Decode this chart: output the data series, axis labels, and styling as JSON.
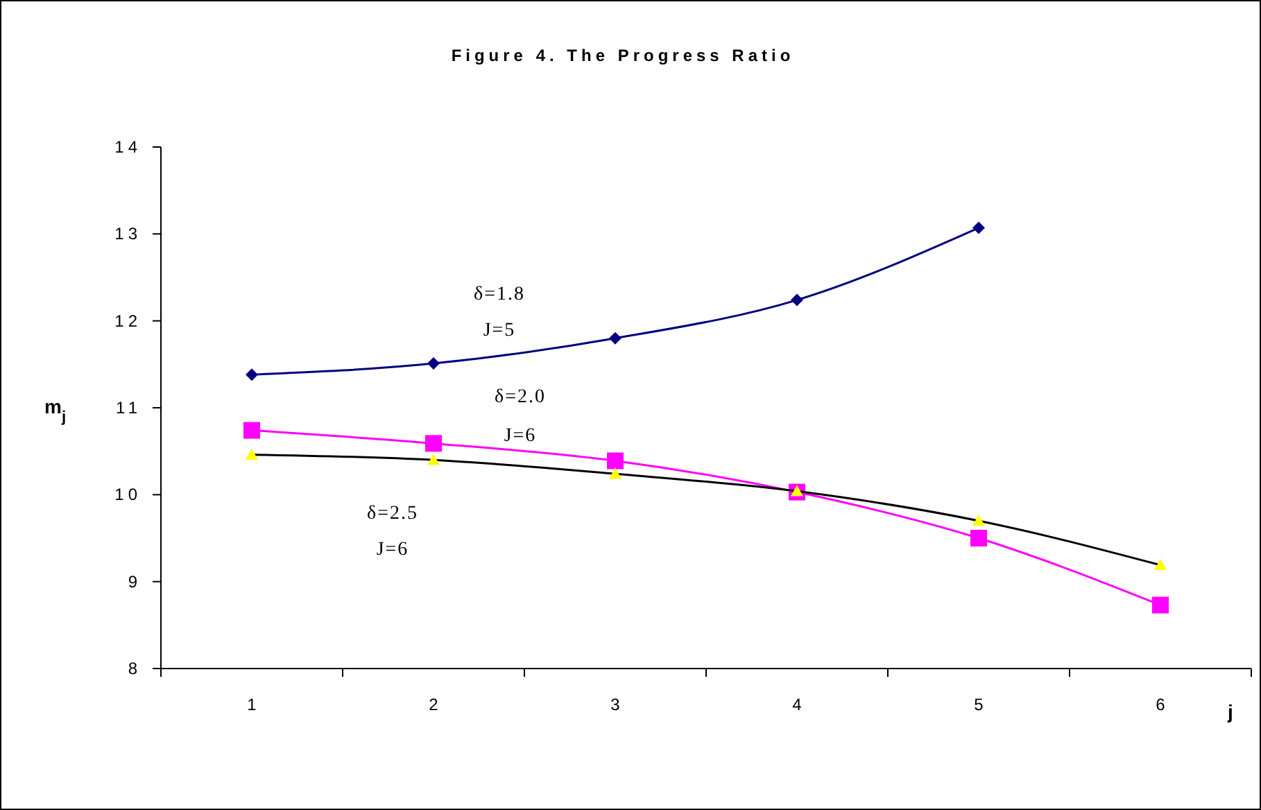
{
  "chart_data": {
    "type": "line",
    "title": "Figure 4. The Progress Ratio",
    "xlabel": "j",
    "ylabel": "m$_{j}$",
    "categories": [
      "1",
      "2",
      "3",
      "4",
      "5",
      "6"
    ],
    "ylim": [
      8,
      14
    ],
    "yticks": [
      8,
      9,
      10,
      11,
      12,
      13,
      14
    ],
    "grid": false,
    "series": [
      {
        "color": "#000080",
        "marker": "diamond",
        "values": [
          11.38,
          11.51,
          11.8,
          12.24,
          13.07,
          null
        ]
      },
      {
        "color": "#ff00ff",
        "marker": "square",
        "values": [
          10.74,
          10.59,
          10.39,
          10.03,
          9.5,
          8.73
        ]
      },
      {
        "color": "#000000",
        "marker": "triangle",
        "values": [
          10.46,
          10.4,
          10.24,
          10.04,
          9.7,
          9.19
        ]
      }
    ],
    "annotations": [
      "δ=1.8",
      "J=5",
      "δ=2.0",
      "J=6",
      "δ=2.5",
      "J=6"
    ]
  }
}
